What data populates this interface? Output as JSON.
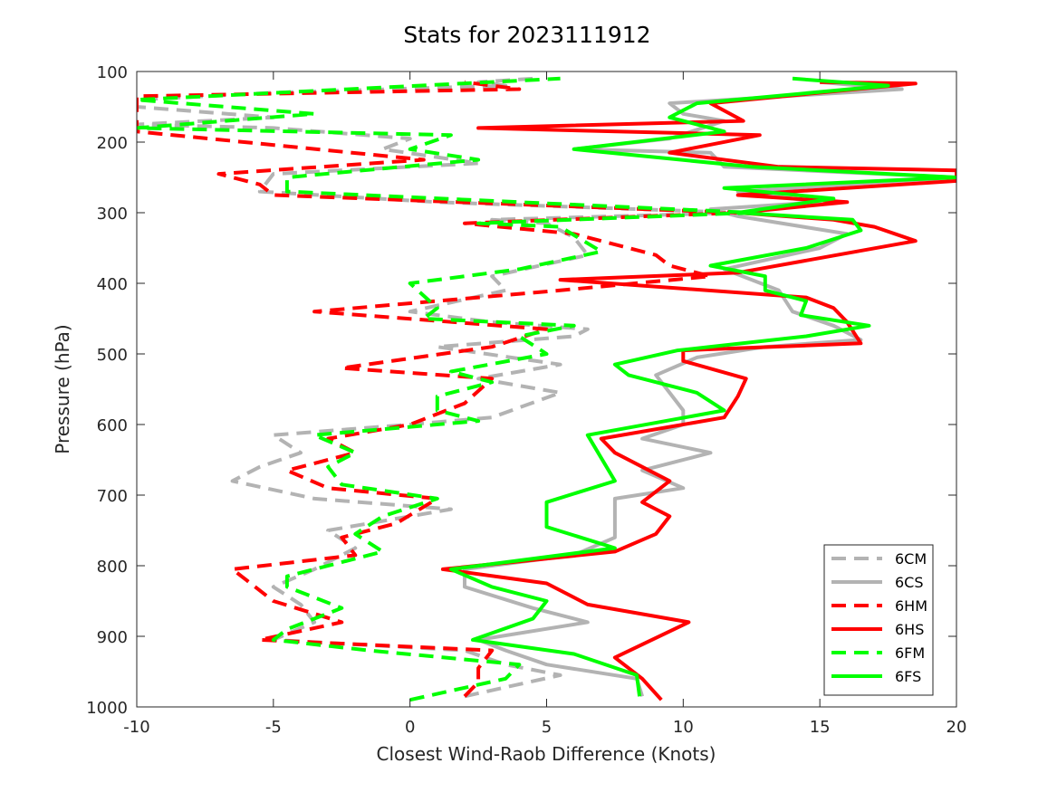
{
  "chart_data": {
    "type": "line",
    "title": "Stats for 2023111912",
    "xlabel": "Closest Wind-Raob Difference (Knots)",
    "ylabel": "Pressure (hPa)",
    "xlim": [
      -10,
      20
    ],
    "ylim": [
      100,
      1000
    ],
    "y_reversed": true,
    "grid": false,
    "legend_position": "bottom-right",
    "xticks": [
      -10,
      -5,
      0,
      5,
      10,
      15,
      20
    ],
    "yticks": [
      100,
      200,
      300,
      400,
      500,
      600,
      700,
      800,
      900,
      1000
    ],
    "series": [
      {
        "name": "6CM",
        "color": "#b3b3b3",
        "dash": true,
        "points": [
          [
            2,
            985
          ],
          [
            5.5,
            955
          ],
          [
            3.5,
            940
          ],
          [
            2,
            920
          ],
          [
            -5,
            905
          ],
          [
            -3.5,
            880
          ],
          [
            -4,
            855
          ],
          [
            -5,
            830
          ],
          [
            -3.5,
            805
          ],
          [
            -2,
            775
          ],
          [
            -3,
            750
          ],
          [
            1.5,
            720
          ],
          [
            -3.5,
            705
          ],
          [
            -6.5,
            680
          ],
          [
            -5.5,
            660
          ],
          [
            -4,
            640
          ],
          [
            -5,
            615
          ],
          [
            0,
            600
          ],
          [
            3,
            590
          ],
          [
            5.5,
            555
          ],
          [
            2.5,
            535
          ],
          [
            5.5,
            515
          ],
          [
            1,
            490
          ],
          [
            6,
            475
          ],
          [
            6.5,
            465
          ],
          [
            3,
            455
          ],
          [
            0,
            440
          ],
          [
            3.5,
            410
          ],
          [
            3,
            390
          ],
          [
            6.5,
            360
          ],
          [
            6,
            335
          ],
          [
            5,
            315
          ],
          [
            3,
            310
          ],
          [
            12,
            300
          ],
          [
            1,
            285
          ],
          [
            -5.5,
            270
          ],
          [
            -5,
            245
          ],
          [
            2.5,
            230
          ],
          [
            -1,
            210
          ],
          [
            0,
            195
          ],
          [
            -5,
            180
          ],
          [
            -10,
            175
          ],
          [
            -5,
            165
          ],
          [
            -10,
            150
          ],
          [
            -10,
            140
          ],
          [
            -5,
            130
          ],
          [
            3.5,
            120
          ],
          [
            2.5,
            115
          ],
          [
            4.5,
            110
          ]
        ]
      },
      {
        "name": "6CS",
        "color": "#b3b3b3",
        "dash": false,
        "points": [
          [
            8.5,
            985
          ],
          [
            8.3,
            960
          ],
          [
            5,
            940
          ],
          [
            3.5,
            920
          ],
          [
            2.5,
            905
          ],
          [
            6.5,
            880
          ],
          [
            4.5,
            860
          ],
          [
            2,
            830
          ],
          [
            2,
            805
          ],
          [
            6,
            785
          ],
          [
            7.5,
            760
          ],
          [
            7.5,
            730
          ],
          [
            7.5,
            705
          ],
          [
            10,
            690
          ],
          [
            8.5,
            665
          ],
          [
            11,
            640
          ],
          [
            8.5,
            620
          ],
          [
            10,
            600
          ],
          [
            10,
            580
          ],
          [
            9.5,
            555
          ],
          [
            9,
            530
          ],
          [
            10.5,
            505
          ],
          [
            13,
            490
          ],
          [
            16.5,
            480
          ],
          [
            15.5,
            460
          ],
          [
            14,
            440
          ],
          [
            13.5,
            410
          ],
          [
            11.5,
            380
          ],
          [
            15,
            350
          ],
          [
            16,
            330
          ],
          [
            12,
            305
          ],
          [
            11,
            295
          ],
          [
            15,
            285
          ],
          [
            12,
            270
          ],
          [
            20,
            250
          ],
          [
            11.5,
            235
          ],
          [
            11,
            215
          ],
          [
            6,
            210
          ],
          [
            9.5,
            195
          ],
          [
            11.5,
            170
          ],
          [
            10,
            160
          ],
          [
            9.5,
            145
          ],
          [
            18,
            125
          ],
          [
            15,
            115
          ]
        ]
      },
      {
        "name": "6HM",
        "color": "#ff0000",
        "dash": true,
        "points": [
          [
            2,
            985
          ],
          [
            2.5,
            965
          ],
          [
            2.5,
            945
          ],
          [
            3,
            920
          ],
          [
            -5.5,
            905
          ],
          [
            -2.5,
            880
          ],
          [
            -5,
            850
          ],
          [
            -6,
            820
          ],
          [
            -6.5,
            805
          ],
          [
            -2,
            785
          ],
          [
            -2.5,
            760
          ],
          [
            -0.5,
            740
          ],
          [
            1,
            705
          ],
          [
            -3,
            690
          ],
          [
            -4.5,
            665
          ],
          [
            -2,
            640
          ],
          [
            -3,
            620
          ],
          [
            0,
            600
          ],
          [
            2,
            570
          ],
          [
            3,
            535
          ],
          [
            -2.5,
            520
          ],
          [
            3,
            490
          ],
          [
            5,
            465
          ],
          [
            -3.5,
            440
          ],
          [
            5.5,
            410
          ],
          [
            11,
            390
          ],
          [
            9.5,
            375
          ],
          [
            9,
            360
          ],
          [
            6,
            330
          ],
          [
            2,
            315
          ],
          [
            12,
            300
          ],
          [
            -5,
            275
          ],
          [
            -5.5,
            260
          ],
          [
            -7,
            245
          ],
          [
            0.5,
            225
          ],
          [
            -10,
            185
          ],
          [
            -10,
            160
          ],
          [
            -10,
            135
          ],
          [
            4,
            125
          ],
          [
            2,
            115
          ]
        ]
      },
      {
        "name": "6HS",
        "color": "#ff0000",
        "dash": false,
        "points": [
          [
            9.2,
            990
          ],
          [
            8.5,
            960
          ],
          [
            7.5,
            930
          ],
          [
            10.2,
            880
          ],
          [
            6.5,
            855
          ],
          [
            5,
            825
          ],
          [
            1.2,
            805
          ],
          [
            7.5,
            780
          ],
          [
            9,
            755
          ],
          [
            9.5,
            730
          ],
          [
            8.5,
            710
          ],
          [
            9.5,
            680
          ],
          [
            8.5,
            660
          ],
          [
            7.5,
            640
          ],
          [
            7,
            620
          ],
          [
            11.5,
            590
          ],
          [
            12,
            560
          ],
          [
            12.3,
            535
          ],
          [
            10,
            510
          ],
          [
            10,
            495
          ],
          [
            16.5,
            485
          ],
          [
            16,
            455
          ],
          [
            15.5,
            435
          ],
          [
            14.5,
            420
          ],
          [
            5.5,
            395
          ],
          [
            12,
            385
          ],
          [
            18.5,
            340
          ],
          [
            17,
            320
          ],
          [
            15.5,
            310
          ],
          [
            12,
            300
          ],
          [
            16,
            285
          ],
          [
            12,
            275
          ],
          [
            20,
            255
          ],
          [
            20,
            240
          ],
          [
            13.5,
            235
          ],
          [
            9.5,
            215
          ],
          [
            12.8,
            190
          ],
          [
            2.5,
            180
          ],
          [
            12.2,
            170
          ],
          [
            11,
            145
          ],
          [
            18.5,
            117
          ],
          [
            15,
            115
          ]
        ]
      },
      {
        "name": "6FM",
        "color": "#00ff00",
        "dash": true,
        "points": [
          [
            0,
            990
          ],
          [
            3.5,
            960
          ],
          [
            4,
            940
          ],
          [
            -1.5,
            920
          ],
          [
            -5,
            905
          ],
          [
            -4.5,
            890
          ],
          [
            -2.5,
            860
          ],
          [
            -4.5,
            830
          ],
          [
            -4.5,
            815
          ],
          [
            -1,
            780
          ],
          [
            -2,
            755
          ],
          [
            -1,
            730
          ],
          [
            1,
            705
          ],
          [
            -2.5,
            685
          ],
          [
            -3,
            660
          ],
          [
            -2,
            640
          ],
          [
            -3.5,
            615
          ],
          [
            2.5,
            595
          ],
          [
            1,
            580
          ],
          [
            1,
            560
          ],
          [
            3,
            540
          ],
          [
            1.5,
            525
          ],
          [
            5,
            500
          ],
          [
            4,
            475
          ],
          [
            6,
            460
          ],
          [
            0.5,
            450
          ],
          [
            1,
            435
          ],
          [
            0,
            400
          ],
          [
            4,
            380
          ],
          [
            7,
            355
          ],
          [
            5.5,
            320
          ],
          [
            2.5,
            315
          ],
          [
            12.5,
            300
          ],
          [
            -4.5,
            270
          ],
          [
            -4.5,
            250
          ],
          [
            2.5,
            225
          ],
          [
            0,
            210
          ],
          [
            1.5,
            190
          ],
          [
            -10,
            180
          ],
          [
            -3.5,
            160
          ],
          [
            -10,
            140
          ],
          [
            5.5,
            110
          ]
        ]
      },
      {
        "name": "6FS",
        "color": "#00ff00",
        "dash": false,
        "points": [
          [
            8.4,
            985
          ],
          [
            8.3,
            955
          ],
          [
            6,
            925
          ],
          [
            2.3,
            905
          ],
          [
            4.5,
            875
          ],
          [
            5,
            850
          ],
          [
            3,
            830
          ],
          [
            1.5,
            805
          ],
          [
            7.5,
            775
          ],
          [
            5,
            745
          ],
          [
            5,
            710
          ],
          [
            7.5,
            680
          ],
          [
            6.5,
            615
          ],
          [
            11.5,
            580
          ],
          [
            10.5,
            555
          ],
          [
            8,
            530
          ],
          [
            7.5,
            515
          ],
          [
            9.8,
            495
          ],
          [
            14.5,
            475
          ],
          [
            16.8,
            460
          ],
          [
            14.3,
            445
          ],
          [
            14.5,
            425
          ],
          [
            13,
            410
          ],
          [
            13,
            390
          ],
          [
            11,
            375
          ],
          [
            14.5,
            350
          ],
          [
            16.5,
            325
          ],
          [
            16.2,
            310
          ],
          [
            12,
            300
          ],
          [
            15.5,
            280
          ],
          [
            11.5,
            265
          ],
          [
            20,
            250
          ],
          [
            12.5,
            235
          ],
          [
            6,
            210
          ],
          [
            11.5,
            185
          ],
          [
            9.5,
            165
          ],
          [
            10.5,
            145
          ],
          [
            17.5,
            120
          ],
          [
            14,
            110
          ]
        ]
      }
    ]
  }
}
